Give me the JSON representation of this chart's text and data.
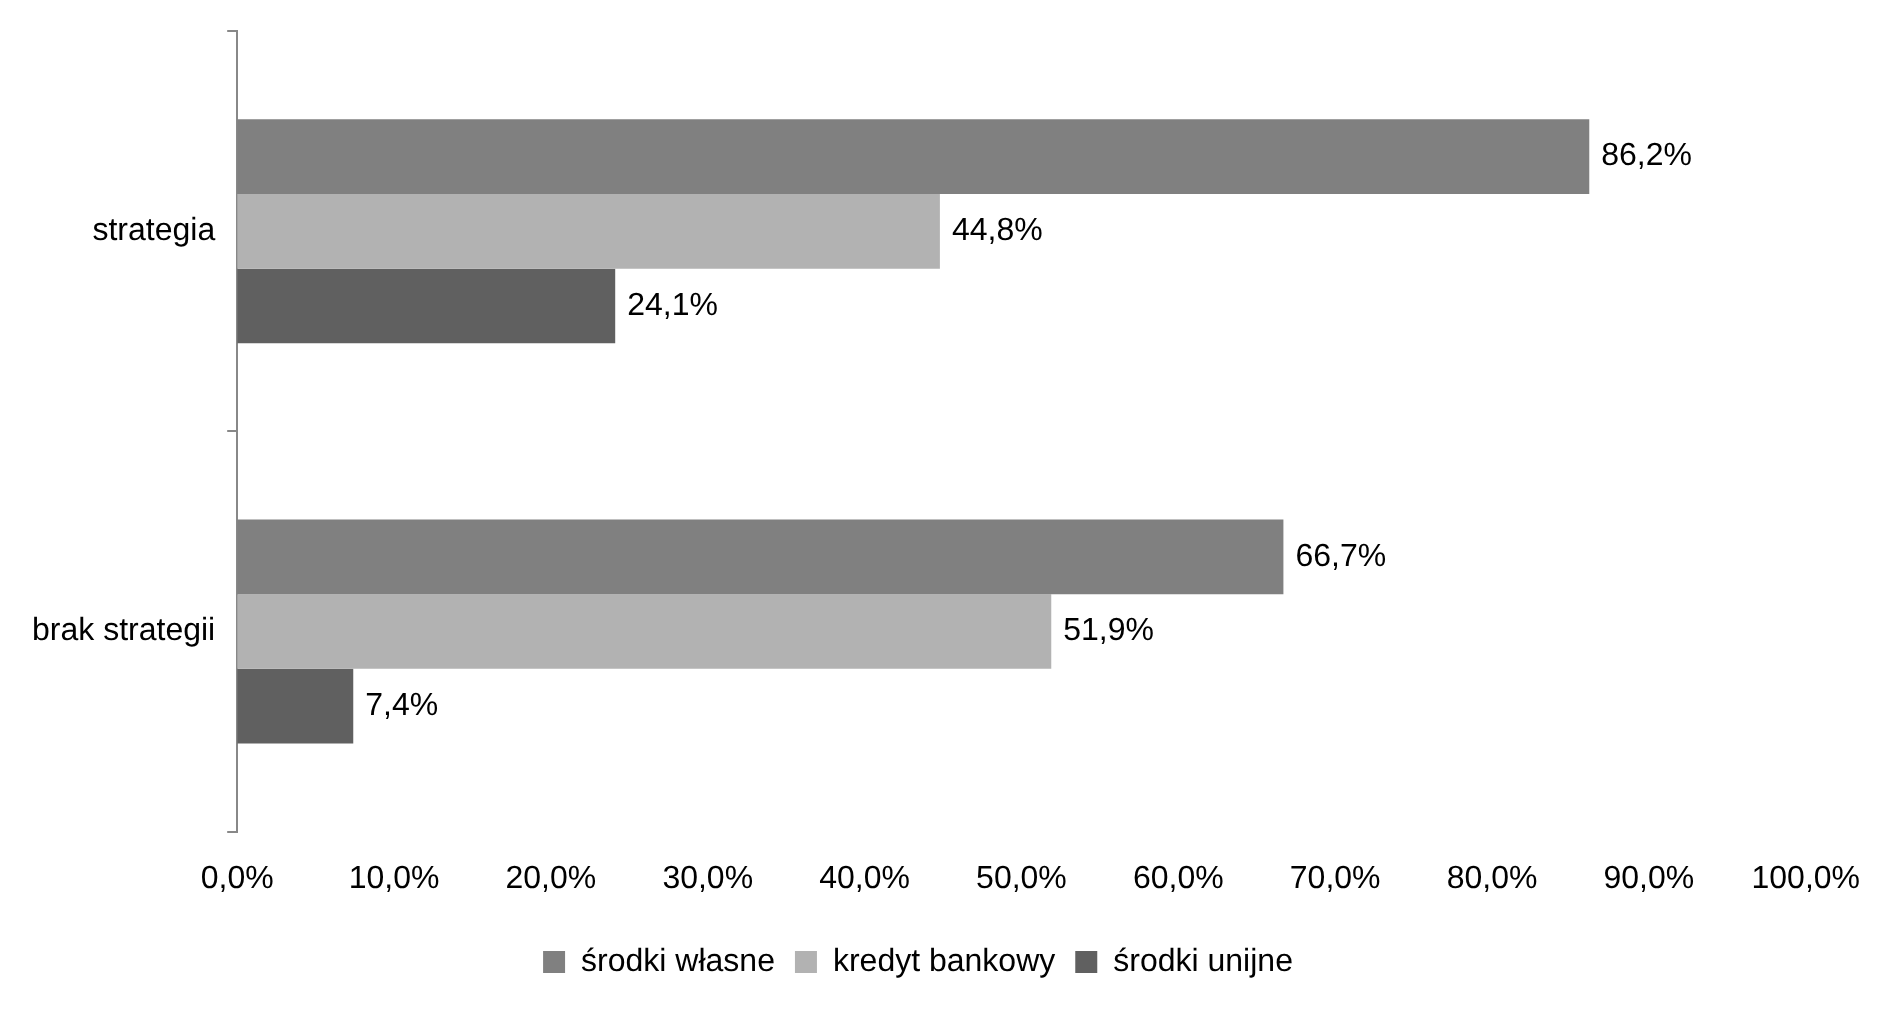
{
  "chart_data": {
    "type": "bar",
    "orientation": "horizontal",
    "categories": [
      "strategia",
      "brak strategii"
    ],
    "series": [
      {
        "name": "środki własne",
        "color": "#808080",
        "values": [
          86.2,
          66.7
        ],
        "value_labels": [
          "86,2%",
          "66,7%"
        ]
      },
      {
        "name": "kredyt bankowy",
        "color": "#b2b2b2",
        "values": [
          44.8,
          51.9
        ],
        "value_labels": [
          "44,8%",
          "51,9%"
        ]
      },
      {
        "name": "środki unijne",
        "color": "#606060",
        "values": [
          24.1,
          7.4
        ],
        "value_labels": [
          "24,1%",
          "7,4%"
        ]
      }
    ],
    "xlim": [
      0,
      100
    ],
    "xticks": [
      {
        "value": 0,
        "label": "0,0%"
      },
      {
        "value": 10,
        "label": "10,0%"
      },
      {
        "value": 20,
        "label": "20,0%"
      },
      {
        "value": 30,
        "label": "30,0%"
      },
      {
        "value": 40,
        "label": "40,0%"
      },
      {
        "value": 50,
        "label": "50,0%"
      },
      {
        "value": 60,
        "label": "60,0%"
      },
      {
        "value": 70,
        "label": "70,0%"
      },
      {
        "value": 80,
        "label": "80,0%"
      },
      {
        "value": 90,
        "label": "90,0%"
      },
      {
        "value": 100,
        "label": "100,0%"
      }
    ],
    "grid": false,
    "legend": "bottom"
  }
}
